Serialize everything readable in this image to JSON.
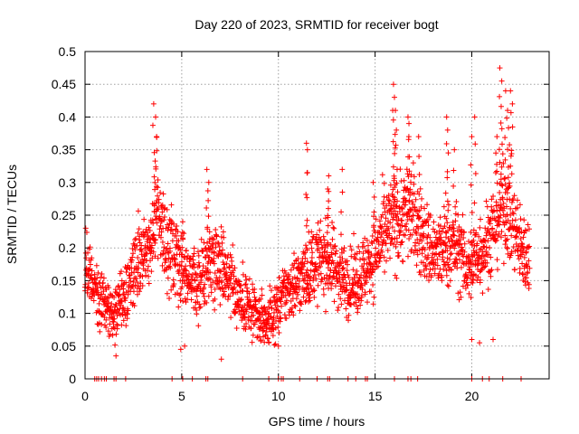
{
  "chart_data": {
    "type": "scatter",
    "title": "Day 220 of 2023, SRMTID for receiver bogt",
    "xlabel": "GPS time / hours",
    "ylabel": "SRMTID / TECUs",
    "xlim": [
      0,
      24
    ],
    "ylim": [
      0,
      0.5
    ],
    "grid": true,
    "marker": "+",
    "x_ticks": [
      0,
      5,
      10,
      15,
      20
    ],
    "x_tick_labels": [
      "0",
      "5",
      "10",
      "15",
      "20"
    ],
    "y_ticks": [
      0,
      0.05,
      0.1,
      0.15,
      0.2,
      0.25,
      0.3,
      0.35,
      0.4,
      0.45,
      0.5
    ],
    "y_tick_labels": [
      "0",
      "0.05",
      "0.1",
      "0.15",
      "0.2",
      "0.25",
      "0.3",
      "0.35",
      "0.4",
      "0.45",
      "0.5"
    ],
    "series": [
      {
        "name": "SRMTID",
        "color": "#ff0000",
        "trend": {
          "x": [
            0,
            0.3,
            0.6,
            1.0,
            1.5,
            2.0,
            2.5,
            3.0,
            3.5,
            3.8,
            4.2,
            4.8,
            5.3,
            5.8,
            6.3,
            6.8,
            7.3,
            7.8,
            8.3,
            8.8,
            9.3,
            9.8,
            10.3,
            10.8,
            11.3,
            11.8,
            12.3,
            12.8,
            13.3,
            13.8,
            14.3,
            14.8,
            15.3,
            15.8,
            16.3,
            16.8,
            17.3,
            17.8,
            18.3,
            18.8,
            19.3,
            19.8,
            20.3,
            20.8,
            21.2,
            21.6,
            22.0,
            22.4,
            22.8,
            23.0
          ],
          "y": [
            0.175,
            0.16,
            0.135,
            0.115,
            0.105,
            0.125,
            0.16,
            0.19,
            0.225,
            0.25,
            0.2,
            0.19,
            0.165,
            0.135,
            0.175,
            0.19,
            0.165,
            0.135,
            0.115,
            0.095,
            0.085,
            0.1,
            0.13,
            0.145,
            0.155,
            0.175,
            0.185,
            0.175,
            0.155,
            0.145,
            0.16,
            0.18,
            0.21,
            0.235,
            0.245,
            0.26,
            0.225,
            0.2,
            0.19,
            0.205,
            0.2,
            0.165,
            0.19,
            0.21,
            0.235,
            0.27,
            0.25,
            0.21,
            0.185,
            0.195
          ]
        },
        "spikes": [
          {
            "x": 3.55,
            "y": 0.42
          },
          {
            "x": 3.65,
            "y": 0.4
          },
          {
            "x": 3.7,
            "y": 0.37
          },
          {
            "x": 5.05,
            "y": 0.24
          },
          {
            "x": 6.3,
            "y": 0.32
          },
          {
            "x": 6.4,
            "y": 0.3
          },
          {
            "x": 11.45,
            "y": 0.36
          },
          {
            "x": 11.5,
            "y": 0.35
          },
          {
            "x": 12.55,
            "y": 0.29
          },
          {
            "x": 12.6,
            "y": 0.31
          },
          {
            "x": 13.3,
            "y": 0.32
          },
          {
            "x": 14.9,
            "y": 0.3
          },
          {
            "x": 15.95,
            "y": 0.45
          },
          {
            "x": 16.0,
            "y": 0.43
          },
          {
            "x": 16.05,
            "y": 0.41
          },
          {
            "x": 16.1,
            "y": 0.38
          },
          {
            "x": 16.7,
            "y": 0.4
          },
          {
            "x": 16.75,
            "y": 0.39
          },
          {
            "x": 17.25,
            "y": 0.37
          },
          {
            "x": 18.7,
            "y": 0.4
          },
          {
            "x": 18.75,
            "y": 0.38
          },
          {
            "x": 19.1,
            "y": 0.35
          },
          {
            "x": 20.0,
            "y": 0.37
          },
          {
            "x": 20.15,
            "y": 0.4
          },
          {
            "x": 21.3,
            "y": 0.37
          },
          {
            "x": 21.45,
            "y": 0.475
          },
          {
            "x": 21.55,
            "y": 0.455
          },
          {
            "x": 21.75,
            "y": 0.44
          },
          {
            "x": 21.85,
            "y": 0.41
          },
          {
            "x": 22.0,
            "y": 0.44
          },
          {
            "x": 22.1,
            "y": 0.42
          }
        ],
        "lows": [
          {
            "x": 1.6,
            "y": 0.035
          },
          {
            "x": 4.95,
            "y": 0.045
          },
          {
            "x": 5.15,
            "y": 0.05
          },
          {
            "x": 7.05,
            "y": 0.03
          },
          {
            "x": 9.5,
            "y": 0.055
          },
          {
            "x": 10.0,
            "y": 0.05
          },
          {
            "x": 20.0,
            "y": 0.06
          },
          {
            "x": 20.4,
            "y": 0.055
          },
          {
            "x": 21.1,
            "y": 0.06
          }
        ],
        "zeros_x": [
          0.5,
          0.6,
          0.7,
          0.85,
          1.0,
          1.1,
          1.5,
          1.6,
          2.1,
          4.5,
          5.05,
          5.55,
          6.25,
          6.35,
          8.15,
          9.5,
          10.0,
          10.15,
          10.25,
          11.1,
          12.0,
          12.55,
          12.65,
          13.6,
          14.0,
          14.5,
          14.6,
          16.0,
          16.7,
          16.85,
          17.2,
          20.0,
          20.55,
          20.9,
          21.6,
          22.55
        ]
      }
    ]
  }
}
